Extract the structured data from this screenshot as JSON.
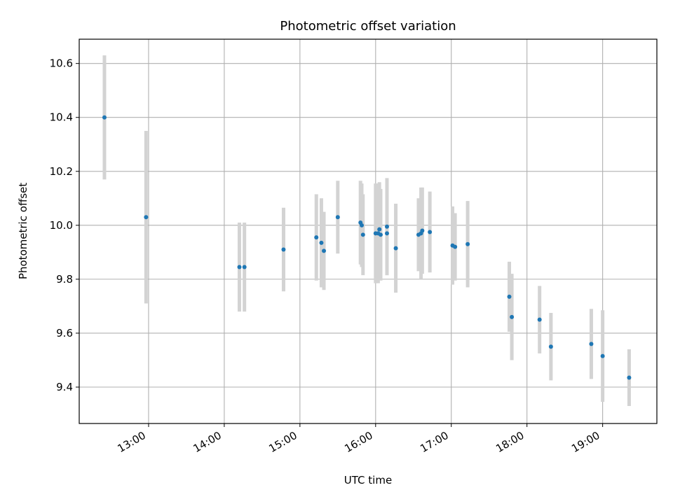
{
  "chart_data": {
    "type": "scatter",
    "title": "Photometric offset variation",
    "xlabel": "UTC time",
    "ylabel": "Photometric offset",
    "x_ticks": [
      "13:00",
      "14:00",
      "15:00",
      "16:00",
      "17:00",
      "18:00",
      "19:00"
    ],
    "y_ticks": [
      "9.4",
      "9.6",
      "9.8",
      "10.0",
      "10.2",
      "10.4",
      "10.6"
    ],
    "xlim": [
      "12:05",
      "19:43"
    ],
    "ylim": [
      9.265,
      10.69
    ],
    "grid": true,
    "colors": {
      "point": "#1f77b4",
      "errorbar": "#d3d3d3",
      "grid": "#b0b0b0"
    },
    "series": [
      {
        "points": [
          {
            "t": "12:25",
            "y": 10.4,
            "err": 0.23
          },
          {
            "t": "12:58",
            "y": 10.03,
            "err": 0.32
          },
          {
            "t": "14:12",
            "y": 9.845,
            "err": 0.165
          },
          {
            "t": "14:16",
            "y": 9.845,
            "err": 0.165
          },
          {
            "t": "14:47",
            "y": 9.91,
            "err": 0.155
          },
          {
            "t": "15:13",
            "y": 9.955,
            "err": 0.16
          },
          {
            "t": "15:17",
            "y": 9.935,
            "err": 0.165
          },
          {
            "t": "15:19",
            "y": 9.905,
            "err": 0.145
          },
          {
            "t": "15:30",
            "y": 10.03,
            "err": 0.135
          },
          {
            "t": "15:48",
            "y": 10.01,
            "err": 0.155
          },
          {
            "t": "15:49",
            "y": 10.0,
            "err": 0.155
          },
          {
            "t": "15:50",
            "y": 9.965,
            "err": 0.15
          },
          {
            "t": "16:00",
            "y": 9.97,
            "err": 0.185
          },
          {
            "t": "16:02",
            "y": 9.97,
            "err": 0.185
          },
          {
            "t": "16:03",
            "y": 9.985,
            "err": 0.175
          },
          {
            "t": "16:04",
            "y": 9.965,
            "err": 0.17
          },
          {
            "t": "16:09",
            "y": 9.995,
            "err": 0.18
          },
          {
            "t": "16:09",
            "y": 9.97,
            "err": 0.155
          },
          {
            "t": "16:16",
            "y": 9.915,
            "err": 0.165
          },
          {
            "t": "16:34",
            "y": 9.965,
            "err": 0.135
          },
          {
            "t": "16:36",
            "y": 9.97,
            "err": 0.17
          },
          {
            "t": "16:37",
            "y": 9.98,
            "err": 0.16
          },
          {
            "t": "16:43",
            "y": 9.975,
            "err": 0.15
          },
          {
            "t": "17:01",
            "y": 9.925,
            "err": 0.145
          },
          {
            "t": "17:03",
            "y": 9.92,
            "err": 0.125
          },
          {
            "t": "17:13",
            "y": 9.93,
            "err": 0.16
          },
          {
            "t": "17:46",
            "y": 9.735,
            "err": 0.13
          },
          {
            "t": "17:48",
            "y": 9.66,
            "err": 0.16
          },
          {
            "t": "18:10",
            "y": 9.65,
            "err": 0.125
          },
          {
            "t": "18:19",
            "y": 9.55,
            "err": 0.125
          },
          {
            "t": "18:51",
            "y": 9.56,
            "err": 0.13
          },
          {
            "t": "19:00",
            "y": 9.515,
            "err": 0.17
          },
          {
            "t": "19:21",
            "y": 9.435,
            "err": 0.105
          }
        ]
      }
    ]
  }
}
